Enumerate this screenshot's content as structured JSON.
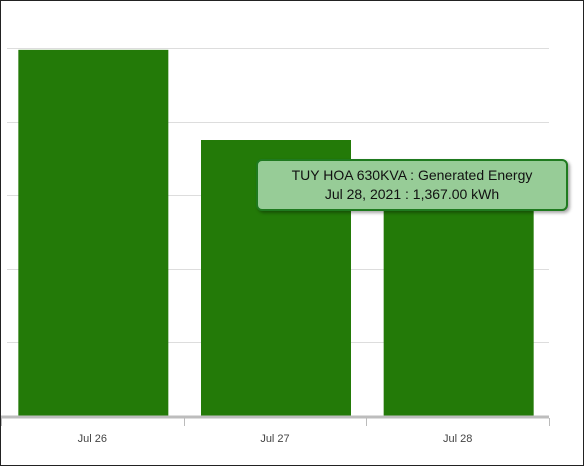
{
  "chart_data": {
    "type": "bar",
    "categories": [
      "Jul 26",
      "Jul 27",
      "Jul 28"
    ],
    "series": [
      {
        "name": "Generated Energy",
        "color": "#237a08",
        "values": [
          1990,
          1500,
          1367
        ]
      }
    ],
    "ylim": [
      0,
      2000
    ],
    "ygrid": [
      400,
      800,
      1200,
      1600,
      2000
    ],
    "grid": true,
    "tooltip": {
      "line1": "TUY HOA 630KVA : Generated Energy",
      "line2": "Jul 28, 2021 : 1,367.00 kWh"
    }
  }
}
